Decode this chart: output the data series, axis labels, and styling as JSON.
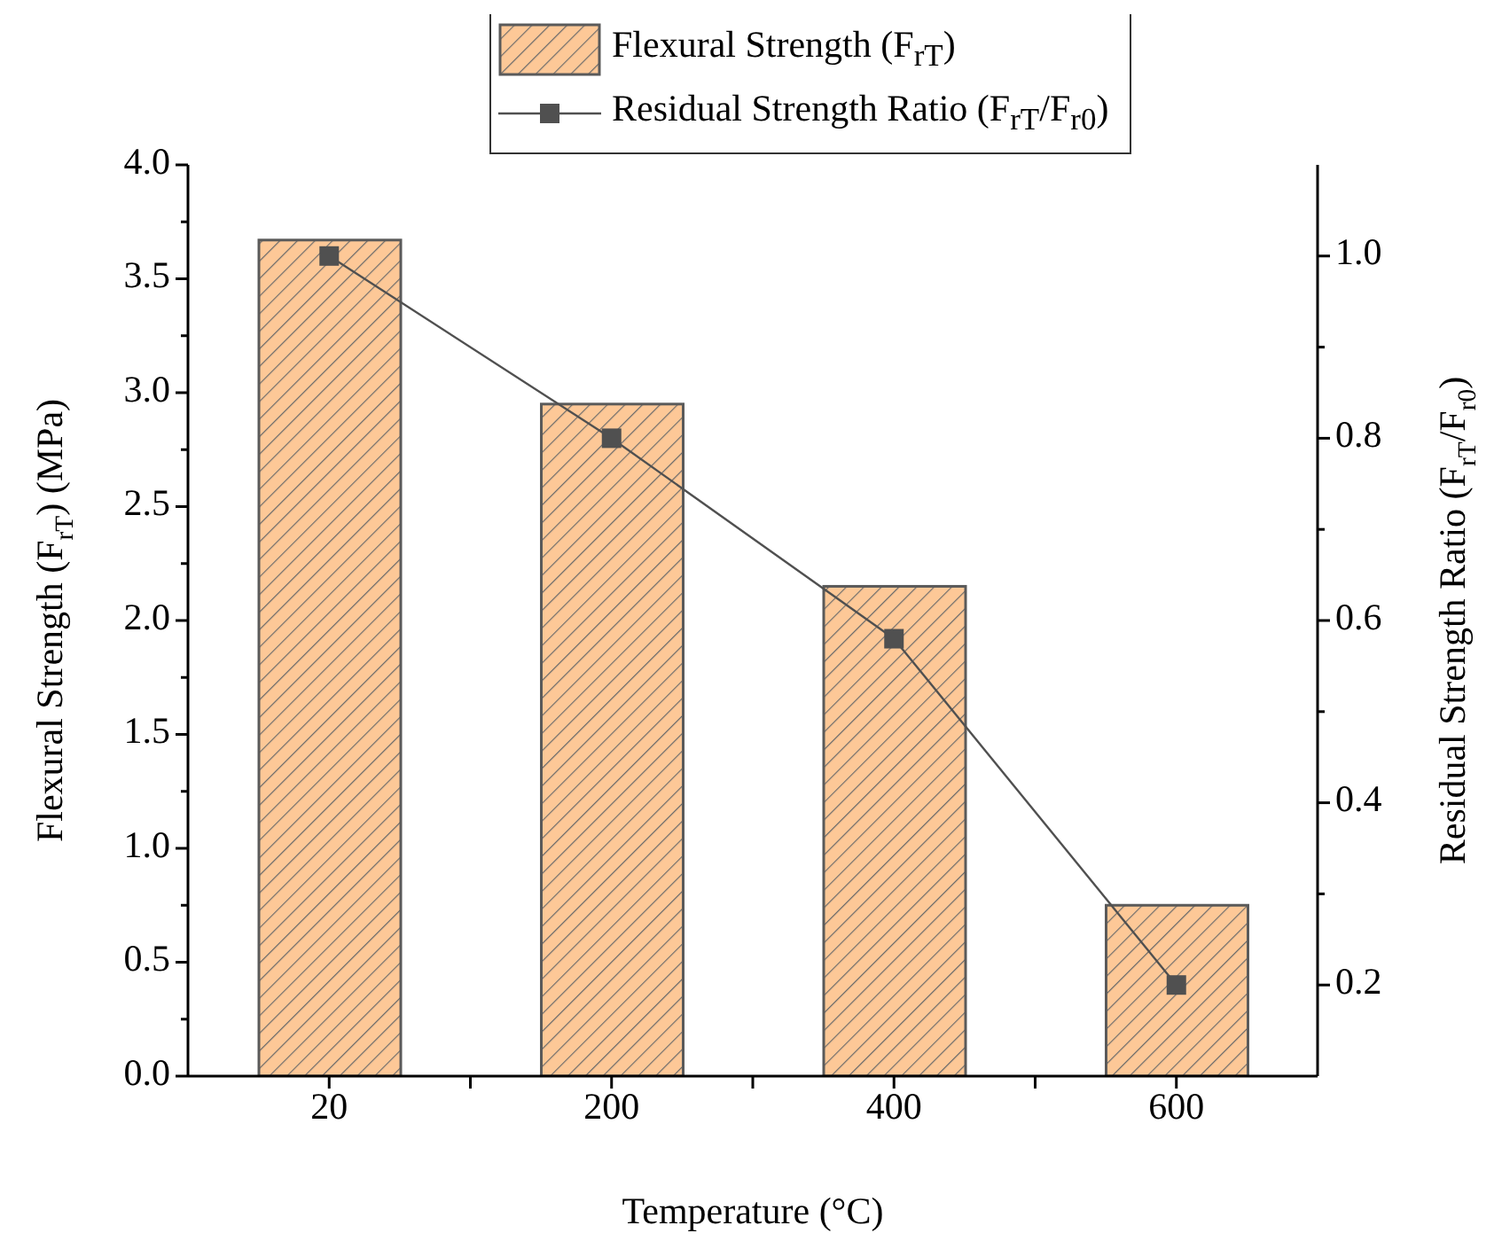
{
  "chart_data": {
    "type": "bar",
    "xlabel": "Temperature (°C)",
    "ylabel": "Flexural Strength (F$_{rT}$) (MPa)",
    "y2label": "Residual Strength Ratio (F$_{rT}$/F$_{r0}$)",
    "categories": [
      "20",
      "200",
      "400",
      "600"
    ],
    "series": [
      {
        "name": "Flexural Strength (F$_{rT}$)",
        "color": "#fdc897",
        "values": [
          3.67,
          2.95,
          2.15,
          0.75
        ]
      },
      {
        "name": "Residual Strength Ratio (F$_{rT}$/F$_{r0}$)",
        "type": "line",
        "axis": "y2",
        "color": "#505050",
        "values": [
          1.0,
          0.8,
          0.58,
          0.2
        ]
      }
    ],
    "ylim": [
      0,
      4
    ],
    "yticks": [
      {
        "value": 0,
        "label": "0.0"
      },
      {
        "value": 0.25,
        "label": null
      },
      {
        "value": 0.5,
        "label": "0.5"
      },
      {
        "value": 0.75,
        "label": null
      },
      {
        "value": 1,
        "label": "1.0"
      },
      {
        "value": 1.25,
        "label": null
      },
      {
        "value": 1.5,
        "label": "1.5"
      },
      {
        "value": 1.75,
        "label": null
      },
      {
        "value": 2,
        "label": "2.0"
      },
      {
        "value": 2.25,
        "label": null
      },
      {
        "value": 2.5,
        "label": "2.5"
      },
      {
        "value": 2.75,
        "label": null
      },
      {
        "value": 3,
        "label": "3.0"
      },
      {
        "value": 3.25,
        "label": null
      },
      {
        "value": 3.5,
        "label": "3.5"
      },
      {
        "value": 3.75,
        "label": null
      },
      {
        "value": 4,
        "label": "4.0"
      }
    ],
    "y2lim": [
      0.1,
      1.1
    ],
    "y2ticks": [
      0.2,
      {
        "value": 0.3,
        "label": null
      },
      0.4,
      {
        "value": 0.5,
        "label": null
      },
      0.6,
      {
        "value": 0.7,
        "label": null
      },
      0.8,
      {
        "value": 0.9,
        "label": null
      },
      {
        "value": 1,
        "label": "1.0"
      }
    ],
    "legend": "top",
    "marker": "square",
    "line_style": "solid"
  }
}
